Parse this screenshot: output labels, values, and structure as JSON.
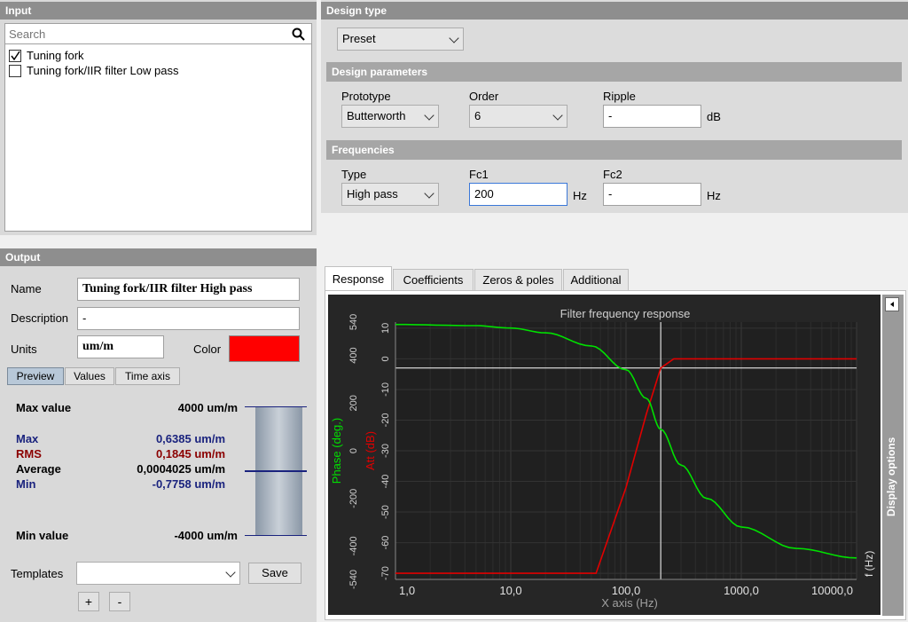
{
  "input": {
    "header": "Input",
    "search_placeholder": "Search",
    "items": [
      {
        "label": "Tuning fork",
        "checked": true
      },
      {
        "label": "Tuning fork/IIR filter Low pass",
        "checked": false
      }
    ]
  },
  "output": {
    "header": "Output",
    "name_label": "Name",
    "name_value": "Tuning fork/IIR filter High pass",
    "description_label": "Description",
    "description_value": "-",
    "units_label": "Units",
    "units_value": "um/m",
    "color_label": "Color",
    "color_value": "#ff0000",
    "subtabs": [
      "Preview",
      "Values",
      "Time axis"
    ],
    "stats": {
      "max_value_label": "Max value",
      "max_value": "4000 um/m",
      "max_label": "Max",
      "max": "0,6385 um/m",
      "rms_label": "RMS",
      "rms": "0,1845 um/m",
      "average_label": "Average",
      "average": "0,0004025 um/m",
      "min_label": "Min",
      "min": "-0,7758 um/m",
      "min_value_label": "Min value",
      "min_value": "-4000 um/m"
    },
    "templates_label": "Templates",
    "templates_value": "",
    "save_label": "Save",
    "add_label": "+",
    "remove_label": "-"
  },
  "design": {
    "header": "Design type",
    "type_value": "Preset",
    "params_header": "Design parameters",
    "prototype_label": "Prototype",
    "prototype_value": "Butterworth",
    "order_label": "Order",
    "order_value": "6",
    "ripple_label": "Ripple",
    "ripple_value": "-",
    "ripple_unit": "dB",
    "freq_header": "Frequencies",
    "type_label": "Type",
    "freq_type_value": "High pass",
    "fc1_label": "Fc1",
    "fc1_value": "200",
    "fc1_unit": "Hz",
    "fc2_label": "Fc2",
    "fc2_value": "-",
    "fc2_unit": "Hz"
  },
  "tabs": [
    "Response",
    "Coefficients",
    "Zeros & poles",
    "Additional"
  ],
  "display_options_label": "Display options",
  "chart_data": {
    "type": "line",
    "title": "Filter frequency response",
    "xlabel": "X axis (Hz)",
    "x_unit_label": "f (Hz)",
    "x_scale": "log",
    "xlim": [
      1,
      10000
    ],
    "x_ticks": [
      "1,0",
      "10,0",
      "100,0",
      "1000,0",
      "10000,0"
    ],
    "y_att_label": "Att (dB)",
    "y_att_ticks": [
      "10",
      "0",
      "-10",
      "-20",
      "-30",
      "-40",
      "-50",
      "-60",
      "-70"
    ],
    "y_att_lim": [
      -72,
      12
    ],
    "y_phase_label": "Phase (deg.)",
    "y_phase_ticks": [
      "540",
      "400",
      "200",
      "0",
      "-200",
      "-400",
      "-540"
    ],
    "y_phase_lim": [
      -540,
      540
    ],
    "cursor_x": 200,
    "cursor_y_att": -3,
    "series": [
      {
        "name": "Att (dB)",
        "color": "#e00000",
        "x": [
          1,
          55,
          100,
          150,
          200,
          260,
          10000
        ],
        "values": [
          -70,
          -70,
          -42,
          -18,
          -3,
          0,
          0
        ]
      },
      {
        "name": "Phase (deg.)",
        "color": "#00e000",
        "x": [
          1,
          5,
          10,
          20,
          50,
          100,
          150,
          200,
          300,
          500,
          1000,
          3000,
          10000
        ],
        "values": [
          530,
          525,
          515,
          495,
          440,
          340,
          220,
          90,
          -60,
          -200,
          -320,
          -410,
          -450
        ]
      }
    ],
    "grid": true
  }
}
